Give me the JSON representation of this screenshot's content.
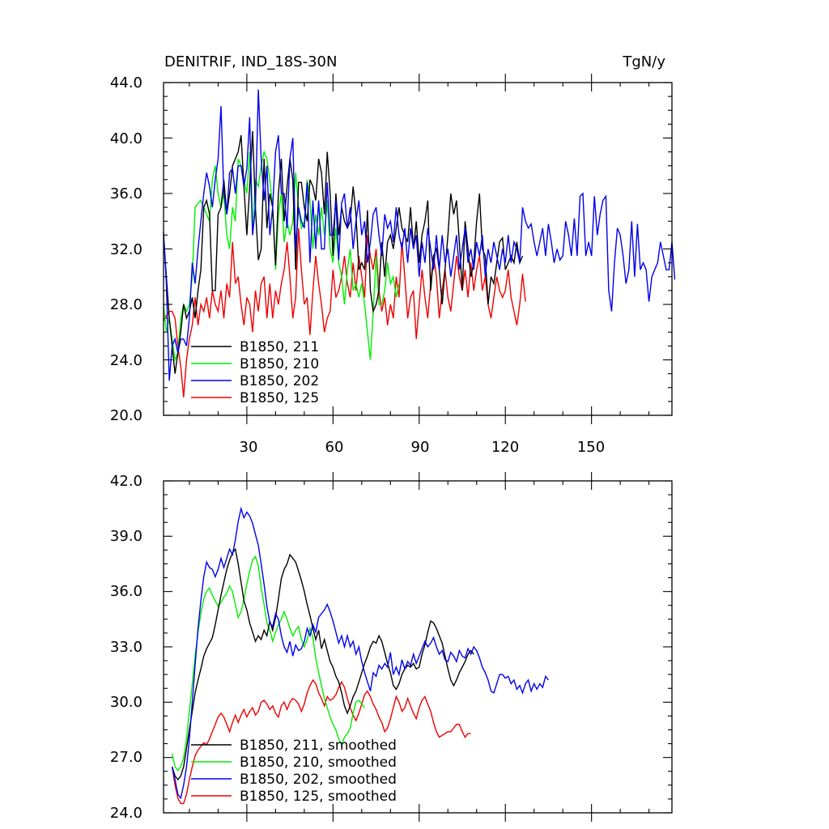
{
  "chart_data": [
    {
      "type": "line",
      "title": "DENITRIF, IND_18S-30N",
      "units": "TgN/y",
      "xlim": [
        1,
        178
      ],
      "ylim": [
        20,
        44
      ],
      "yticks": [
        20,
        24,
        28,
        32,
        36,
        40,
        44
      ],
      "ytick_labels": [
        "20.0",
        "24.0",
        "28.0",
        "32.0",
        "36.0",
        "40.0",
        "44.0"
      ],
      "xticks": [
        30,
        60,
        90,
        120,
        150
      ],
      "xtick_labels": [
        "30",
        "60",
        "90",
        "120",
        "150"
      ],
      "legend_position": "bottom-left",
      "series": [
        {
          "name": "B1850, 211",
          "color": "#000000",
          "x_start": 1,
          "values": [
            33.0,
            30.0,
            27.0,
            25.0,
            23.0,
            24.5,
            26.0,
            28.0,
            27.0,
            27.5,
            28.5,
            27.0,
            29.0,
            30.5,
            35.0,
            35.5,
            34.5,
            29.0,
            29.0,
            34.5,
            35.0,
            37.0,
            34.5,
            36.0,
            38.0,
            38.5,
            39.0,
            40.2,
            36.5,
            33.0,
            36.5,
            40.5,
            35.0,
            31.2,
            32.0,
            38.5,
            33.5,
            36.0,
            35.0,
            30.8,
            36.0,
            38.5,
            34.0,
            36.5,
            38.5,
            37.0,
            30.5,
            36.8,
            36.8,
            35.0,
            34.0,
            37.0,
            36.5,
            35.5,
            38.5,
            37.5,
            34.5,
            39.0,
            36.0,
            31.5,
            36.0,
            33.0,
            35.0,
            34.0,
            33.5,
            34.0,
            36.5,
            34.5,
            30.5,
            31.0,
            30.5,
            34.8,
            29.0,
            27.5,
            28.0,
            29.0,
            32.5,
            30.0,
            32.5,
            33.0,
            32.0,
            33.5,
            35.0,
            33.5,
            33.0,
            32.5,
            35.0,
            32.0,
            34.0,
            31.0,
            33.0,
            34.0,
            35.5,
            29.0,
            31.5,
            32.0,
            30.5,
            28.0,
            30.5,
            33.0,
            36.0,
            34.5,
            35.5,
            32.5,
            29.0,
            34.0,
            32.0,
            30.0,
            31.0,
            34.0,
            36.0,
            32.0,
            31.5,
            28.0,
            30.0,
            29.5,
            31.0,
            32.5,
            32.8,
            30.5,
            31.0,
            31.5,
            31.0,
            32.5,
            31.0,
            31.5
          ]
        },
        {
          "name": "B1850, 210",
          "color": "#00ee00",
          "x_start": 1,
          "values": [
            28.0,
            26.0,
            27.0,
            25.5,
            24.0,
            24.5,
            27.0,
            28.0,
            27.5,
            28.0,
            30.0,
            35.0,
            35.3,
            35.5,
            35.0,
            34.5,
            34.0,
            37.0,
            38.0,
            36.0,
            35.0,
            36.0,
            33.0,
            32.0,
            35.0,
            34.0,
            38.5,
            38.0,
            37.0,
            36.0,
            39.0,
            33.0,
            37.0,
            36.5,
            38.0,
            39.0,
            38.5,
            37.0,
            35.0,
            30.5,
            34.5,
            36.0,
            32.5,
            34.0,
            33.0,
            34.0,
            37.5,
            35.0,
            33.5,
            34.0,
            37.0,
            35.5,
            32.0,
            34.5,
            33.0,
            35.0,
            33.0,
            35.5,
            32.0,
            31.0,
            33.5,
            31.0,
            30.0,
            28.0,
            30.5,
            32.0,
            29.0,
            29.5,
            28.5,
            29.5,
            28.0,
            26.0,
            24.0,
            27.5,
            31.5,
            28.0,
            28.0,
            29.0,
            31.0,
            29.5,
            30.0,
            28.5,
            29.5
          ]
        },
        {
          "name": "B1850, 202",
          "color": "#0000ee",
          "x_start": 1,
          "values": [
            33.2,
            29.5,
            22.5,
            25.0,
            25.5,
            24.5,
            25.5,
            25.5,
            25.0,
            27.0,
            31.0,
            29.5,
            32.0,
            34.0,
            36.0,
            37.5,
            36.5,
            35.0,
            37.0,
            38.5,
            42.3,
            36.0,
            34.5,
            37.5,
            37.8,
            36.0,
            38.0,
            38.0,
            36.5,
            37.8,
            41.5,
            33.0,
            35.0,
            43.5,
            38.5,
            35.5,
            38.0,
            33.0,
            35.0,
            39.0,
            40.2,
            36.0,
            36.0,
            33.5,
            38.5,
            40.0,
            32.0,
            35.0,
            34.0,
            33.5,
            36.8,
            31.0,
            35.5,
            32.0,
            35.5,
            32.0,
            32.0,
            36.8,
            33.0,
            33.0,
            35.5,
            31.2,
            35.3,
            36.0,
            33.5,
            35.0,
            32.0,
            34.0,
            35.5,
            33.0,
            34.0,
            31.0,
            32.5,
            34.5,
            35.0,
            33.0,
            31.5,
            34.5,
            33.5,
            34.0,
            32.5,
            35.0,
            33.0,
            32.0,
            33.5,
            31.0,
            33.5,
            32.0,
            33.0,
            30.0,
            32.5,
            31.0,
            33.5,
            32.0,
            30.5,
            33.0,
            30.5,
            33.0,
            31.0,
            32.0,
            30.0,
            31.5,
            33.0,
            30.5,
            32.0,
            33.5,
            31.0,
            32.0,
            30.5,
            32.5,
            31.5,
            33.0,
            30.0,
            32.0,
            31.0,
            32.5,
            31.5,
            30.5,
            32.0,
            31.0,
            33.0,
            31.0,
            32.5,
            32.0,
            31.0,
            35.0,
            34.0,
            33.5,
            33.8,
            32.5,
            31.5,
            32.5,
            33.5,
            31.5,
            33.8,
            32.5,
            31.0,
            32.0,
            31.2,
            31.5,
            34.0,
            33.0,
            31.5,
            34.2,
            31.5,
            35.8,
            36.0,
            31.5,
            32.5,
            31.5,
            35.8,
            33.0,
            34.5,
            35.5,
            35.8,
            29.0,
            27.5,
            31.0,
            33.5,
            33.0,
            31.5,
            29.5,
            30.5,
            34.0,
            30.0,
            33.8,
            30.5,
            31.0,
            30.5,
            28.2,
            30.0,
            30.5,
            31.0,
            32.5,
            31.5,
            30.5,
            30.5,
            32.5,
            29.8
          ]
        },
        {
          "name": "B1850, 125",
          "color": "#ee0000",
          "x_start": 1,
          "values": [
            26.8,
            27.2,
            27.5,
            27.5,
            27.0,
            25.0,
            23.5,
            21.3,
            24.0,
            25.5,
            26.5,
            28.5,
            26.5,
            28.0,
            27.5,
            28.5,
            27.0,
            29.0,
            28.0,
            27.5,
            29.0,
            27.0,
            29.5,
            28.5,
            32.5,
            29.5,
            30.0,
            28.0,
            26.5,
            28.5,
            28.0,
            26.0,
            29.0,
            27.5,
            29.5,
            30.0,
            27.0,
            29.5,
            27.0,
            29.0,
            28.0,
            29.5,
            30.5,
            32.5,
            30.0,
            27.0,
            28.5,
            33.5,
            30.5,
            28.0,
            28.5,
            25.8,
            29.0,
            31.5,
            29.5,
            28.0,
            26.0,
            27.0,
            27.5,
            30.5,
            28.5,
            29.0,
            30.0,
            31.5,
            29.5,
            28.5,
            31.0,
            29.0,
            31.5,
            30.0,
            28.5,
            33.0,
            31.5,
            30.5,
            32.0,
            29.0,
            27.5,
            28.5,
            26.5,
            28.0,
            27.0,
            30.0,
            28.5,
            32.5,
            30.0,
            27.0,
            28.5,
            29.0,
            25.5,
            28.0,
            30.5,
            28.5,
            27.0,
            29.5,
            31.5,
            30.0,
            27.0,
            29.0,
            30.5,
            28.5,
            27.5,
            29.5,
            31.5,
            30.0,
            29.0,
            30.5,
            28.5,
            31.0,
            29.0,
            30.5,
            31.5,
            29.0,
            30.0,
            28.0,
            27.0,
            28.5,
            30.0,
            29.0,
            28.5,
            29.0,
            30.5,
            28.5,
            27.5,
            26.5,
            28.0,
            30.2,
            28.2
          ]
        }
      ]
    },
    {
      "type": "line",
      "xlim": [
        1,
        178
      ],
      "ylim": [
        24,
        42
      ],
      "yticks": [
        24,
        27,
        30,
        33,
        36,
        39,
        42
      ],
      "ytick_labels": [
        "24.0",
        "27.0",
        "30.0",
        "33.0",
        "36.0",
        "39.0",
        "42.0"
      ],
      "xticks": [
        30,
        60,
        90,
        120,
        150
      ],
      "legend_position": "bottom-left",
      "series": [
        {
          "name": "B1850, 211, smoothed",
          "color": "#000000",
          "x_start": 4,
          "values": [
            26.5,
            26.0,
            25.8,
            26.0,
            26.5,
            27.5,
            28.5,
            29.5,
            30.5,
            31.2,
            31.8,
            32.5,
            32.9,
            33.2,
            33.5,
            34.2,
            35.0,
            35.8,
            36.5,
            37.2,
            37.7,
            38.1,
            38.3,
            37.5,
            36.5,
            35.5,
            35.0,
            34.3,
            33.8,
            33.3,
            33.6,
            33.4,
            33.9,
            33.6,
            34.4,
            33.9,
            34.6,
            35.6,
            36.7,
            37.2,
            37.5,
            38.0,
            37.8,
            37.6,
            37.1,
            36.6,
            36.0,
            35.3,
            34.7,
            34.0,
            33.4,
            33.9,
            32.9,
            33.4,
            32.8,
            32.2,
            31.9,
            31.4,
            31.1,
            30.5,
            29.8,
            29.4,
            29.8,
            30.3,
            30.6,
            31.1,
            31.6,
            32.1,
            32.5,
            33.0,
            33.3,
            33.2,
            33.6,
            33.3,
            32.7,
            32.1,
            31.6,
            30.9,
            30.7,
            31.0,
            31.5,
            31.8,
            32.0,
            31.9,
            32.1,
            31.8,
            31.9,
            32.6,
            33.1,
            33.8,
            34.4,
            34.3,
            34.0,
            33.6,
            33.2,
            32.5,
            31.8,
            31.2,
            30.9,
            31.2,
            31.6,
            31.9,
            32.2,
            32.6,
            32.8,
            32.6
          ]
        },
        {
          "name": "B1850, 210, smoothed",
          "color": "#00ee00",
          "x_start": 4,
          "values": [
            27.2,
            26.5,
            26.3,
            26.5,
            27.0,
            28.0,
            29.5,
            31.0,
            32.5,
            33.8,
            34.8,
            35.6,
            36.0,
            36.2,
            35.8,
            35.5,
            35.2,
            35.4,
            35.7,
            35.9,
            36.3,
            36.0,
            35.3,
            34.6,
            34.9,
            35.6,
            36.4,
            37.1,
            37.7,
            37.9,
            37.4,
            36.2,
            35.3,
            34.3,
            33.9,
            33.3,
            33.8,
            34.2,
            34.5,
            34.9,
            34.5,
            34.0,
            33.6,
            33.9,
            34.1,
            33.4,
            33.0,
            33.4,
            34.0,
            33.5,
            32.4,
            31.6,
            30.9,
            30.2,
            29.7,
            29.2,
            28.8,
            28.5,
            28.0,
            27.7,
            28.1,
            28.3,
            28.6,
            29.4,
            30.0,
            30.1,
            29.9,
            29.7
          ]
        },
        {
          "name": "B1850, 202, smoothed",
          "color": "#0000ee",
          "x_start": 4,
          "values": [
            26.5,
            25.8,
            25.0,
            24.8,
            25.5,
            26.5,
            28.0,
            30.0,
            32.0,
            34.0,
            35.5,
            36.8,
            37.6,
            37.3,
            37.2,
            36.8,
            37.2,
            37.8,
            37.3,
            37.8,
            38.3,
            38.0,
            38.8,
            39.8,
            40.5,
            40.0,
            40.3,
            40.1,
            39.7,
            39.1,
            38.5,
            37.5,
            36.4,
            35.2,
            34.3,
            34.1,
            34.8,
            34.5,
            33.6,
            33.0,
            32.7,
            33.3,
            32.5,
            33.1,
            32.8,
            32.9,
            33.3,
            34.0,
            33.6,
            34.2,
            33.8,
            34.6,
            34.8,
            35.0,
            35.3,
            34.9,
            34.4,
            33.8,
            33.2,
            33.6,
            33.0,
            33.6,
            33.0,
            33.3,
            32.6,
            33.0,
            32.2,
            31.6,
            31.1,
            30.6,
            31.6,
            31.4,
            32.0,
            31.8,
            32.1,
            31.9,
            32.7,
            31.5,
            31.9,
            31.5,
            32.3,
            31.8,
            32.2,
            32.0,
            32.6,
            32.1,
            32.5,
            32.9,
            33.3,
            33.0,
            33.2,
            33.5,
            33.0,
            32.6,
            32.8,
            32.3,
            32.2,
            32.7,
            32.5,
            32.2,
            32.8,
            32.5,
            32.4,
            32.9,
            32.6,
            33.0,
            32.8,
            32.4,
            31.9,
            31.6,
            31.2,
            30.6,
            30.5,
            31.0,
            31.5,
            31.5,
            31.3,
            31.4,
            31.0,
            31.2,
            30.7,
            30.9,
            30.5,
            31.0,
            31.2,
            30.6,
            31.0,
            30.7,
            31.0,
            30.8,
            31.4,
            31.2
          ]
        },
        {
          "name": "B1850, 125, smoothed",
          "color": "#ee0000",
          "x_start": 4,
          "values": [
            26.5,
            25.5,
            24.8,
            24.5,
            24.5,
            25.0,
            25.8,
            26.5,
            27.1,
            27.4,
            27.6,
            27.8,
            27.7,
            28.0,
            28.4,
            28.8,
            29.2,
            29.4,
            29.2,
            28.8,
            28.4,
            28.9,
            29.3,
            28.9,
            29.3,
            29.6,
            29.2,
            29.5,
            29.7,
            29.3,
            29.5,
            30.0,
            30.1,
            29.9,
            29.6,
            29.8,
            29.4,
            29.2,
            29.8,
            30.0,
            29.6,
            30.0,
            30.2,
            30.1,
            29.9,
            29.5,
            29.9,
            30.5,
            30.9,
            31.2,
            31.0,
            30.5,
            30.2,
            29.8,
            30.3,
            30.1,
            30.2,
            30.4,
            30.8,
            31.1,
            30.8,
            30.2,
            29.7,
            29.3,
            29.0,
            29.4,
            29.9,
            30.4,
            30.6,
            30.3,
            29.9,
            29.6,
            29.2,
            28.9,
            28.4,
            28.6,
            29.1,
            29.7,
            30.3,
            30.0,
            29.5,
            29.7,
            30.2,
            29.8,
            29.4,
            29.1,
            29.7,
            30.1,
            30.3,
            29.9,
            29.5,
            28.9,
            28.4,
            28.1,
            28.2,
            28.3,
            28.4,
            28.4,
            28.6,
            28.8,
            28.8,
            28.4,
            28.1,
            28.3,
            28.3
          ]
        }
      ]
    }
  ]
}
